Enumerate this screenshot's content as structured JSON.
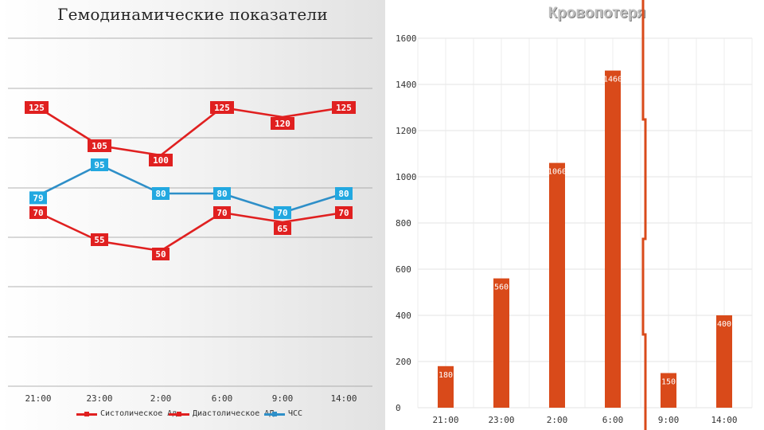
{
  "chart_data": [
    {
      "type": "line",
      "title": "Гемодинамические показатели",
      "categories": [
        "21:00",
        "23:00",
        "2:00",
        "6:00",
        "9:00",
        "14:00"
      ],
      "series": [
        {
          "name": "Систолическое Ад",
          "values": [
            125,
            105,
            100,
            125,
            120,
            125
          ],
          "color": "#e02020"
        },
        {
          "name": "Диастолическое АД",
          "values": [
            70,
            55,
            50,
            70,
            65,
            70
          ],
          "color": "#e02020"
        },
        {
          "name": "ЧСС",
          "values": [
            79,
            95,
            80,
            80,
            70,
            80
          ],
          "color": "#2e8fc8",
          "label_color": "#22a8e0"
        }
      ],
      "legend": "bottom",
      "grid": true
    },
    {
      "type": "bar",
      "title": "Кровопотеря",
      "categories": [
        "21:00",
        "23:00",
        "2:00",
        "6:00",
        "9:00",
        "14:00"
      ],
      "values": [
        180,
        560,
        1060,
        1460,
        150,
        400
      ],
      "color": "#d94a1a",
      "ylim": [
        0,
        1600
      ],
      "yticks": [
        "0",
        "200",
        "400",
        "600",
        "800",
        "1000",
        "1200",
        "1400",
        "1600"
      ],
      "grid": true
    }
  ]
}
